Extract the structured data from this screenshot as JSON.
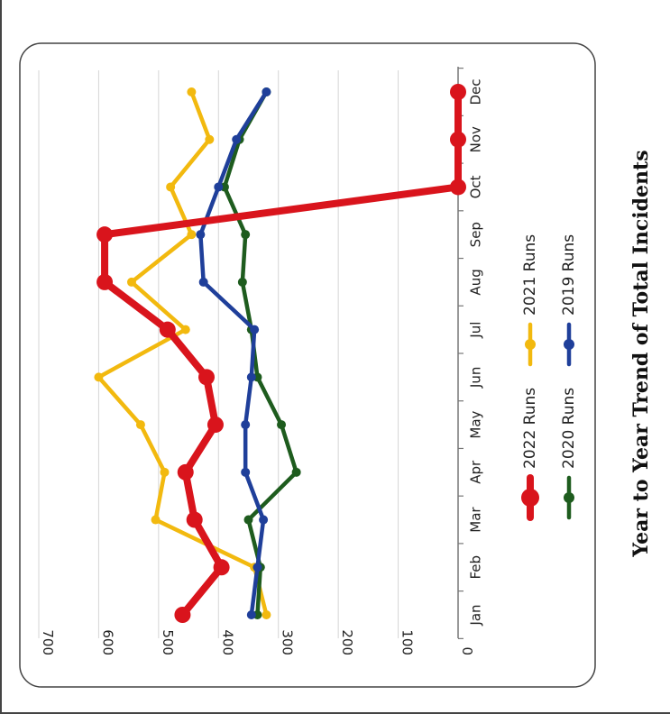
{
  "chart_data": {
    "type": "line",
    "title": "Year to Year Trend of Total Incidents",
    "xlabel": "",
    "ylabel": "",
    "categories": [
      "Jan",
      "Feb",
      "Mar",
      "Apr",
      "May",
      "Jun",
      "Jul",
      "Aug",
      "Sep",
      "Oct",
      "Nov",
      "Dec"
    ],
    "ylim": [
      0,
      700
    ],
    "yticks": [
      0,
      100,
      200,
      300,
      400,
      500,
      600,
      700
    ],
    "grid": true,
    "legend_position": "top",
    "orientation": "rotated-90-clockwise",
    "series": [
      {
        "name": "2022 Runs",
        "color": "#d9141c",
        "values": [
          460,
          395,
          440,
          455,
          405,
          420,
          485,
          590,
          590,
          0,
          0,
          0
        ]
      },
      {
        "name": "2021 Runs",
        "color": "#f2b90f",
        "values": [
          320,
          340,
          505,
          490,
          530,
          600,
          455,
          545,
          445,
          480,
          415,
          445
        ]
      },
      {
        "name": "2020 Runs",
        "color": "#1e5c1e",
        "values": [
          335,
          330,
          350,
          270,
          295,
          335,
          345,
          360,
          355,
          390,
          365,
          320
        ]
      },
      {
        "name": "2019 Runs",
        "color": "#1f3f9a",
        "values": [
          345,
          335,
          325,
          355,
          355,
          345,
          340,
          425,
          430,
          400,
          370,
          320
        ]
      }
    ]
  }
}
